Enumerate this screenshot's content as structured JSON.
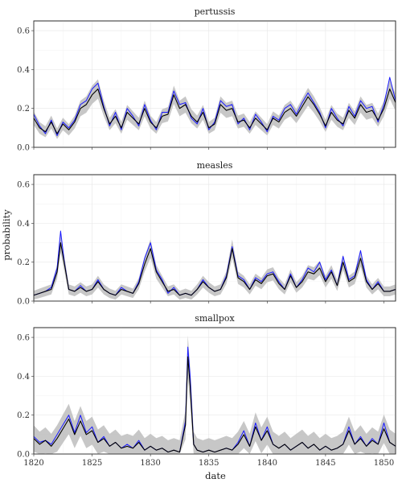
{
  "chart_data": {
    "type": "line",
    "xlabel": "date",
    "ylabel": "probability",
    "xlim": [
      1820,
      1851
    ],
    "ylim": [
      0,
      0.65
    ],
    "x_ticks": [
      1820,
      1825,
      1830,
      1835,
      1840,
      1845,
      1850
    ],
    "y_ticks": [
      0.0,
      0.2,
      0.4,
      0.6
    ],
    "x_tick_labels": [
      "1820",
      "1825",
      "1830",
      "1835",
      "1840",
      "1845",
      "1850"
    ],
    "y_tick_labels": [
      "0.0",
      "0.2",
      "0.4",
      "0.6"
    ],
    "grid": true,
    "colors": {
      "observed": "#1a1aff",
      "fitted": "#000000",
      "band": "#bdbdbd"
    },
    "panels": [
      {
        "strip": "pertussis",
        "x": [
          1820,
          1820.5,
          1821,
          1821.5,
          1822,
          1822.5,
          1823,
          1823.5,
          1824,
          1824.5,
          1825,
          1825.5,
          1826,
          1826.5,
          1827,
          1827.5,
          1828,
          1828.5,
          1829,
          1829.5,
          1830,
          1830.5,
          1831,
          1831.5,
          1832,
          1832.5,
          1833,
          1833.5,
          1834,
          1834.5,
          1835,
          1835.5,
          1836,
          1836.5,
          1837,
          1837.5,
          1838,
          1838.5,
          1839,
          1839.5,
          1840,
          1840.5,
          1841,
          1841.5,
          1842,
          1842.5,
          1843,
          1843.5,
          1844,
          1844.5,
          1845,
          1845.5,
          1846,
          1846.5,
          1847,
          1847.5,
          1848,
          1848.5,
          1849,
          1849.5,
          1850,
          1850.5,
          1851
        ],
        "fitted": [
          0.15,
          0.1,
          0.08,
          0.13,
          0.07,
          0.12,
          0.09,
          0.13,
          0.2,
          0.22,
          0.27,
          0.3,
          0.2,
          0.12,
          0.16,
          0.1,
          0.18,
          0.15,
          0.12,
          0.2,
          0.13,
          0.1,
          0.16,
          0.17,
          0.27,
          0.2,
          0.22,
          0.16,
          0.13,
          0.18,
          0.1,
          0.12,
          0.22,
          0.19,
          0.2,
          0.13,
          0.14,
          0.1,
          0.15,
          0.12,
          0.09,
          0.15,
          0.13,
          0.18,
          0.2,
          0.16,
          0.21,
          0.26,
          0.22,
          0.17,
          0.11,
          0.18,
          0.14,
          0.12,
          0.19,
          0.15,
          0.22,
          0.18,
          0.19,
          0.14,
          0.2,
          0.3,
          0.23
        ],
        "observed": [
          0.17,
          0.11,
          0.07,
          0.14,
          0.06,
          0.13,
          0.1,
          0.14,
          0.22,
          0.24,
          0.3,
          0.33,
          0.21,
          0.11,
          0.18,
          0.09,
          0.2,
          0.16,
          0.11,
          0.22,
          0.14,
          0.09,
          0.18,
          0.18,
          0.29,
          0.22,
          0.23,
          0.15,
          0.12,
          0.2,
          0.09,
          0.13,
          0.24,
          0.21,
          0.22,
          0.12,
          0.15,
          0.09,
          0.17,
          0.13,
          0.08,
          0.16,
          0.14,
          0.2,
          0.22,
          0.17,
          0.23,
          0.28,
          0.23,
          0.18,
          0.1,
          0.2,
          0.15,
          0.11,
          0.21,
          0.16,
          0.24,
          0.2,
          0.21,
          0.13,
          0.22,
          0.36,
          0.24
        ],
        "band_halfwidth": 0.02
      },
      {
        "strip": "measles",
        "x": [
          1820,
          1820.5,
          1821,
          1821.5,
          1822,
          1822.3,
          1822.6,
          1823,
          1823.5,
          1824,
          1824.5,
          1825,
          1825.5,
          1826,
          1826.5,
          1827,
          1827.5,
          1828,
          1828.5,
          1829,
          1829.5,
          1830,
          1830.5,
          1831,
          1831.5,
          1832,
          1832.5,
          1833,
          1833.5,
          1834,
          1834.5,
          1835,
          1835.5,
          1836,
          1836.5,
          1837,
          1837.5,
          1838,
          1838.5,
          1839,
          1839.5,
          1840,
          1840.5,
          1841,
          1841.5,
          1842,
          1842.5,
          1843,
          1843.5,
          1844,
          1844.5,
          1845,
          1845.5,
          1846,
          1846.5,
          1847,
          1847.5,
          1848,
          1848.5,
          1849,
          1849.5,
          1850,
          1850.5,
          1851
        ],
        "fitted": [
          0.03,
          0.04,
          0.05,
          0.06,
          0.15,
          0.3,
          0.2,
          0.06,
          0.05,
          0.07,
          0.05,
          0.06,
          0.1,
          0.06,
          0.04,
          0.03,
          0.06,
          0.05,
          0.04,
          0.09,
          0.19,
          0.27,
          0.15,
          0.1,
          0.05,
          0.06,
          0.03,
          0.04,
          0.03,
          0.06,
          0.1,
          0.07,
          0.05,
          0.06,
          0.12,
          0.27,
          0.12,
          0.1,
          0.06,
          0.11,
          0.09,
          0.13,
          0.14,
          0.09,
          0.06,
          0.13,
          0.07,
          0.1,
          0.15,
          0.14,
          0.17,
          0.1,
          0.15,
          0.08,
          0.2,
          0.1,
          0.12,
          0.22,
          0.1,
          0.06,
          0.09,
          0.05,
          0.05,
          0.06
        ],
        "observed": [
          0.03,
          0.04,
          0.05,
          0.07,
          0.17,
          0.36,
          0.21,
          0.06,
          0.05,
          0.08,
          0.05,
          0.06,
          0.11,
          0.06,
          0.04,
          0.03,
          0.07,
          0.05,
          0.04,
          0.1,
          0.22,
          0.3,
          0.16,
          0.11,
          0.04,
          0.07,
          0.03,
          0.04,
          0.03,
          0.06,
          0.11,
          0.07,
          0.05,
          0.06,
          0.13,
          0.28,
          0.13,
          0.11,
          0.06,
          0.12,
          0.1,
          0.14,
          0.15,
          0.1,
          0.06,
          0.14,
          0.07,
          0.11,
          0.17,
          0.15,
          0.2,
          0.11,
          0.16,
          0.08,
          0.23,
          0.11,
          0.13,
          0.26,
          0.11,
          0.06,
          0.1,
          0.05,
          0.05,
          0.06
        ],
        "band_halfwidth": 0.02
      },
      {
        "strip": "smallpox",
        "x": [
          1820,
          1820.5,
          1821,
          1821.5,
          1822,
          1822.5,
          1823,
          1823.5,
          1824,
          1824.5,
          1825,
          1825.5,
          1826,
          1826.5,
          1827,
          1827.5,
          1828,
          1828.5,
          1829,
          1829.5,
          1830,
          1830.5,
          1831,
          1831.5,
          1832,
          1832.5,
          1833,
          1833.2,
          1833.4,
          1833.7,
          1834,
          1834.5,
          1835,
          1835.5,
          1836,
          1836.5,
          1837,
          1837.5,
          1838,
          1838.5,
          1839,
          1839.5,
          1840,
          1840.5,
          1841,
          1841.5,
          1842,
          1842.5,
          1843,
          1843.5,
          1844,
          1844.5,
          1845,
          1845.5,
          1846,
          1846.5,
          1847,
          1847.5,
          1848,
          1848.5,
          1849,
          1849.5,
          1850,
          1850.5,
          1851
        ],
        "fitted": [
          0.08,
          0.05,
          0.07,
          0.04,
          0.08,
          0.13,
          0.18,
          0.1,
          0.17,
          0.1,
          0.12,
          0.06,
          0.08,
          0.04,
          0.06,
          0.03,
          0.04,
          0.03,
          0.06,
          0.02,
          0.04,
          0.02,
          0.03,
          0.01,
          0.02,
          0.01,
          0.15,
          0.5,
          0.35,
          0.05,
          0.02,
          0.01,
          0.02,
          0.01,
          0.02,
          0.03,
          0.02,
          0.05,
          0.1,
          0.04,
          0.14,
          0.07,
          0.12,
          0.05,
          0.03,
          0.05,
          0.02,
          0.04,
          0.06,
          0.03,
          0.05,
          0.02,
          0.04,
          0.02,
          0.03,
          0.05,
          0.12,
          0.05,
          0.08,
          0.04,
          0.07,
          0.05,
          0.13,
          0.06,
          0.04
        ],
        "observed": [
          0.09,
          0.06,
          0.07,
          0.05,
          0.1,
          0.15,
          0.2,
          0.11,
          0.2,
          0.11,
          0.14,
          0.06,
          0.09,
          0.04,
          0.06,
          0.03,
          0.05,
          0.03,
          0.07,
          0.02,
          0.04,
          0.02,
          0.03,
          0.01,
          0.02,
          0.01,
          0.17,
          0.55,
          0.4,
          0.05,
          0.02,
          0.01,
          0.02,
          0.01,
          0.02,
          0.03,
          0.02,
          0.06,
          0.12,
          0.04,
          0.16,
          0.07,
          0.14,
          0.05,
          0.03,
          0.05,
          0.02,
          0.04,
          0.06,
          0.03,
          0.05,
          0.02,
          0.04,
          0.02,
          0.03,
          0.05,
          0.14,
          0.05,
          0.09,
          0.04,
          0.08,
          0.05,
          0.16,
          0.06,
          0.04
        ],
        "band_halfwidth": 0.06
      }
    ]
  }
}
